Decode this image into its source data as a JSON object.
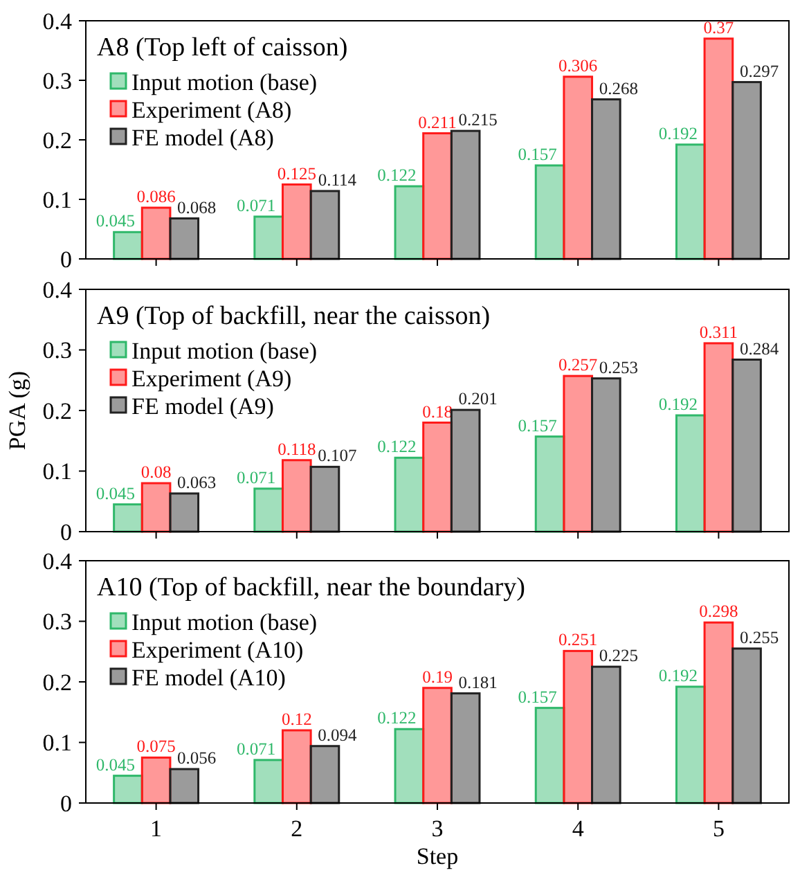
{
  "chart_data": [
    {
      "type": "bar",
      "title": "A8 (Top left of caisson)",
      "categories": [
        "1",
        "2",
        "3",
        "4",
        "5"
      ],
      "series": [
        {
          "name": "Input motion (base)",
          "color": "#2fb86a",
          "values": [
            0.045,
            0.071,
            0.122,
            0.157,
            0.192
          ]
        },
        {
          "name": "Experiment (A8)",
          "color": "#ff1a1a",
          "values": [
            0.086,
            0.125,
            0.211,
            0.306,
            0.37
          ]
        },
        {
          "name": "FE model (A8)",
          "color": "#222222",
          "values": [
            0.068,
            0.114,
            0.215,
            0.268,
            0.297
          ]
        }
      ],
      "ylim": [
        0,
        0.4
      ],
      "yticks": [
        0,
        0.1,
        0.2,
        0.3,
        0.4
      ],
      "data_labels": true,
      "legend": "top left",
      "tick_labels": "y"
    },
    {
      "type": "bar",
      "title": "A9 (Top of backfill, near the caisson)",
      "ylabel": "PGA (g)",
      "categories": [
        "1",
        "2",
        "3",
        "4",
        "5"
      ],
      "series": [
        {
          "name": "Input motion (base)",
          "color": "#2fb86a",
          "values": [
            0.045,
            0.071,
            0.122,
            0.157,
            0.192
          ]
        },
        {
          "name": "Experiment (A9)",
          "color": "#ff1a1a",
          "values": [
            0.08,
            0.118,
            0.18,
            0.257,
            0.311
          ]
        },
        {
          "name": "FE model  (A9)",
          "color": "#222222",
          "values": [
            0.063,
            0.107,
            0.201,
            0.253,
            0.284
          ]
        }
      ],
      "ylim": [
        0,
        0.4
      ],
      "yticks": [
        0,
        0.1,
        0.2,
        0.3,
        0.4
      ],
      "data_labels": true,
      "legend": "top left",
      "tick_labels": "y"
    },
    {
      "type": "bar",
      "title": "A10 (Top of backfill, near the boundary)",
      "xlabel": "Step",
      "categories": [
        "1",
        "2",
        "3",
        "4",
        "5"
      ],
      "series": [
        {
          "name": "Input motion (base)",
          "color": "#2fb86a",
          "values": [
            0.045,
            0.071,
            0.122,
            0.157,
            0.192
          ]
        },
        {
          "name": "Experiment (A10)",
          "color": "#ff1a1a",
          "values": [
            0.075,
            0.12,
            0.19,
            0.251,
            0.298
          ]
        },
        {
          "name": "FE model (A10)",
          "color": "#222222",
          "values": [
            0.056,
            0.094,
            0.181,
            0.225,
            0.255
          ]
        }
      ],
      "ylim": [
        0,
        0.4
      ],
      "yticks": [
        0,
        0.1,
        0.2,
        0.3,
        0.4
      ],
      "data_labels": true,
      "legend": "top left"
    }
  ]
}
